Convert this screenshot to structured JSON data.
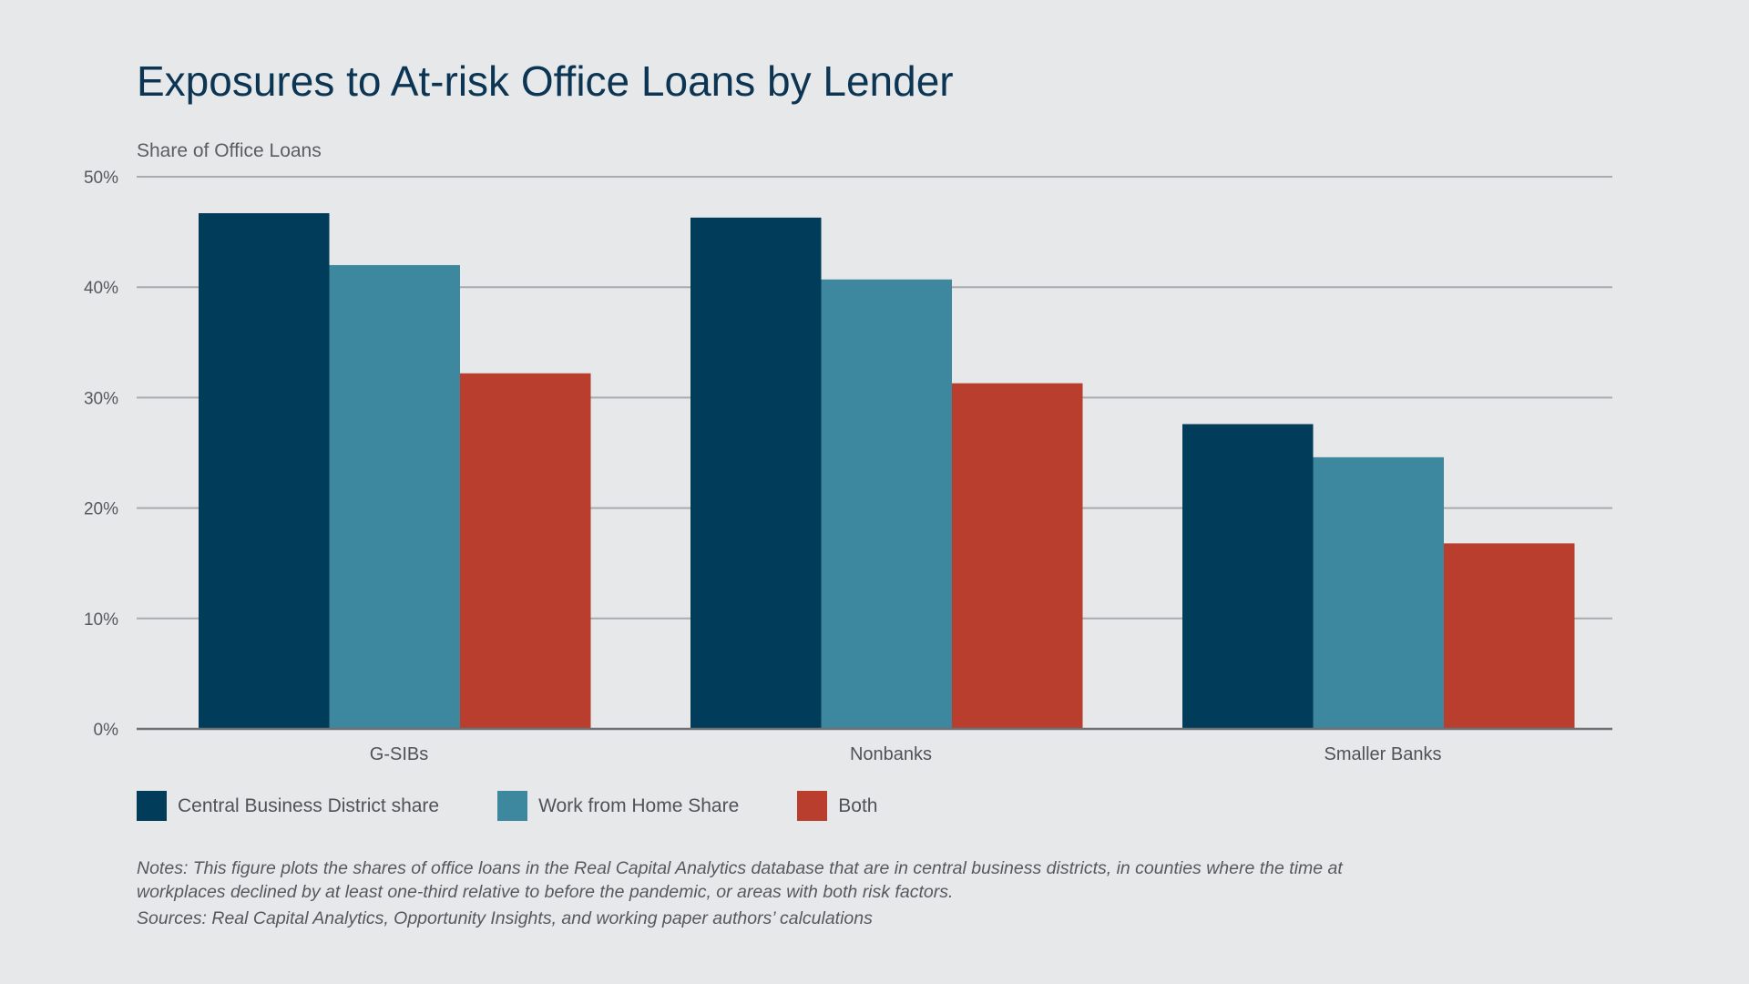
{
  "chart_data": {
    "type": "bar",
    "title": "Exposures to At-risk Office Loans by Lender",
    "ylabel": "Share of Office Loans",
    "xlabel": "",
    "categories": [
      "G-SIBs",
      "Nonbanks",
      "Smaller Banks"
    ],
    "series": [
      {
        "name": "Central Business District share",
        "color": "#013d5a",
        "values": [
          46.7,
          46.3,
          27.6
        ]
      },
      {
        "name": "Work from Home Share",
        "color": "#3d889f",
        "values": [
          42.0,
          40.7,
          24.6
        ]
      },
      {
        "name": "Both",
        "color": "#b93e2d",
        "values": [
          32.2,
          31.3,
          16.8
        ]
      }
    ],
    "ylim": [
      0,
      50
    ],
    "yticks": [
      "0%",
      "10%",
      "20%",
      "30%",
      "40%",
      "50%"
    ],
    "grid": true,
    "legend_position": "bottom-left"
  },
  "notes": "Notes: This figure plots the shares of office loans in the Real Capital Analytics database that are in central business districts, in counties where the time at workplaces declined by at least one-third relative to before the pandemic, or areas with both risk factors.",
  "sources": "Sources: Real Capital Analytics, Opportunity Insights, and working paper authors’ calculations"
}
